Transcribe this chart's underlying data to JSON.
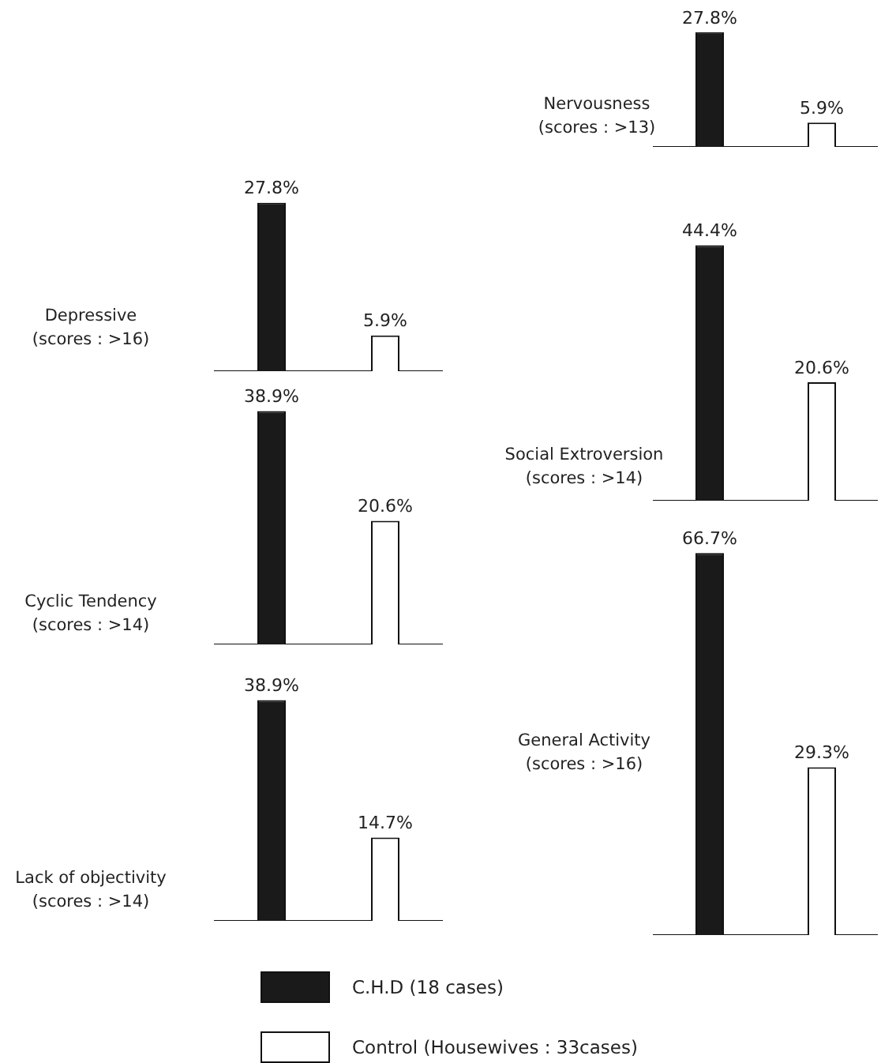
{
  "chart_data": [
    {
      "type": "bar",
      "title": "Depressive",
      "subtitle": "(scores : >16)",
      "categories": [
        null,
        null
      ],
      "values": [
        27.8,
        5.9
      ],
      "colors": [
        "#1a1a1a",
        "#ffffff"
      ],
      "value_labels": [
        "27.8%",
        "5.9%"
      ]
    },
    {
      "type": "bar",
      "title": "Cyclic Tendency",
      "subtitle": "(scores : >14)",
      "categories": [
        null,
        null
      ],
      "values": [
        38.9,
        20.6
      ],
      "colors": [
        "#1a1a1a",
        "#ffffff"
      ],
      "value_labels": [
        "38.9%",
        "20.6%"
      ]
    },
    {
      "type": "bar",
      "title": "Lack of objectivity",
      "subtitle": "(scores : >14)",
      "categories": [
        null,
        null
      ],
      "values": [
        38.9,
        14.7
      ],
      "colors": [
        "#1a1a1a",
        "#ffffff"
      ],
      "value_labels": [
        "38.9%",
        "14.7%"
      ]
    },
    {
      "type": "bar",
      "title": "Nervousness",
      "subtitle": "(scores : >13)",
      "categories": [
        null,
        null
      ],
      "values": [
        27.8,
        5.9
      ],
      "colors": [
        "#1a1a1a",
        "#ffffff"
      ],
      "value_labels": [
        "27.8%",
        "5.9%"
      ]
    },
    {
      "type": "bar",
      "title": "Social Extroversion",
      "subtitle": "(scores : >14)",
      "categories": [
        null,
        null
      ],
      "values": [
        44.4,
        20.6
      ],
      "colors": [
        "#1a1a1a",
        "#ffffff"
      ],
      "value_labels": [
        "44.4%",
        "20.6%"
      ]
    },
    {
      "type": "bar",
      "title": "General Activity",
      "subtitle": "(scores : >16)",
      "categories": [
        null,
        null
      ],
      "values": [
        66.7,
        29.3
      ],
      "colors": [
        "#1a1a1a",
        "#ffffff"
      ],
      "value_labels": [
        "66.7%",
        "29.3%"
      ],
      "annotations": [
        "C.H.D (18 cases)",
        "Control (Housewives : 33cases)"
      ]
    }
  ]
}
